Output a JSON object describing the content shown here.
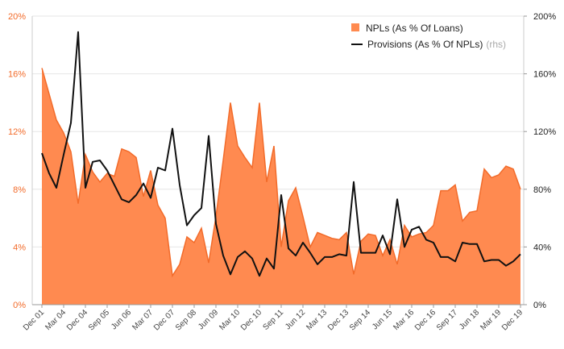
{
  "colors": {
    "area_fill": "#FF8A50",
    "area_stroke": "#F26B2A",
    "line": "#111111",
    "left_axis_text": "#F26B2A",
    "right_axis_text": "#222222",
    "grid": "#E6E6E6"
  },
  "chart_data": {
    "type": "area",
    "title": "",
    "xlabel": "",
    "ylabel_left": "",
    "ylabel_right": "",
    "x_labels": [
      "Dec 01",
      "Mar 04",
      "Dec 04",
      "Sep 05",
      "Jun 06",
      "Mar 07",
      "Dec 07",
      "Sep 08",
      "Jun 09",
      "Mar 10",
      "Dec 10",
      "Sep 11",
      "Jun 12",
      "Mar 13",
      "Dec 13",
      "Sep 14",
      "Jun 15",
      "Mar 16",
      "Dec 16",
      "Sep 17",
      "Jun 18",
      "Mar 19",
      "Dec 19"
    ],
    "left_axis": {
      "min": 0,
      "max": 20,
      "ticks": [
        0,
        4,
        8,
        12,
        16,
        20
      ],
      "tick_labels": [
        "0%",
        "4%",
        "8%",
        "12%",
        "16%",
        "20%"
      ]
    },
    "right_axis": {
      "min": 0,
      "max": 200,
      "ticks": [
        0,
        40,
        80,
        120,
        160,
        200
      ],
      "tick_labels": [
        "0%",
        "40%",
        "80%",
        "120%",
        "160%",
        "200%"
      ]
    },
    "grid": "horizontal",
    "legend_position": "top-right",
    "legend": {
      "area_label": "NPLs (As % Of Loans)",
      "line_label": "Provisions (As % Of NPLs)",
      "line_note": "(rhs)"
    },
    "series": [
      {
        "name": "NPLs (As % Of Loans)",
        "axis": "left",
        "kind": "area",
        "values": [
          16.4,
          14.6,
          12.8,
          11.9,
          10.6,
          7.0,
          10.4,
          9.2,
          8.5,
          9.1,
          8.9,
          10.8,
          10.6,
          10.2,
          7.5,
          9.3,
          6.9,
          6.0,
          2.0,
          2.8,
          4.7,
          4.3,
          5.3,
          2.9,
          6.1,
          10.0,
          14.0,
          11.0,
          10.2,
          9.5,
          14.0,
          8.5,
          11.0,
          4.0,
          7.2,
          8.1,
          6.1,
          4.0,
          5.0,
          4.8,
          4.6,
          4.5,
          5.0,
          2.1,
          4.4,
          4.9,
          4.8,
          3.4,
          4.5,
          2.8,
          5.5,
          4.7,
          4.9,
          5.0,
          5.5,
          7.9,
          7.9,
          8.3,
          5.8,
          6.4,
          6.5,
          9.4,
          8.8,
          9.0,
          9.6,
          9.4,
          8.0
        ]
      },
      {
        "name": "Provisions (As % Of NPLs)",
        "axis": "right",
        "kind": "line",
        "values": [
          105,
          91,
          81,
          104,
          126,
          189,
          81,
          99,
          100,
          93,
          83,
          73,
          71,
          76,
          84,
          74,
          95,
          93,
          122,
          83,
          55,
          62,
          67,
          117,
          56,
          34,
          21,
          33,
          37,
          32,
          20,
          32,
          25,
          76,
          39,
          34,
          43,
          36,
          28,
          33,
          33,
          35,
          34,
          85,
          36,
          36,
          36,
          48,
          35,
          73,
          40,
          52,
          54,
          45,
          43,
          33,
          33,
          30,
          43,
          42,
          42,
          30,
          31,
          31,
          27,
          30,
          35
        ]
      }
    ]
  }
}
